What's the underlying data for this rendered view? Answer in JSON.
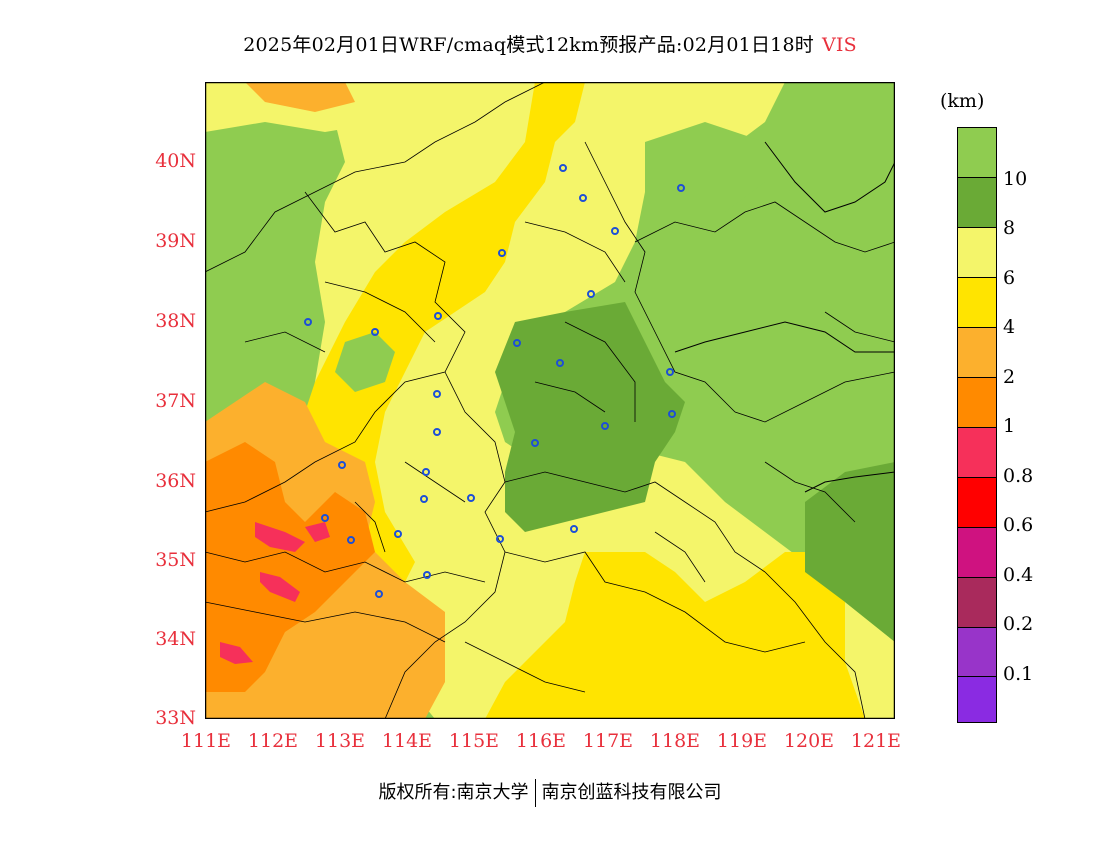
{
  "title": {
    "text": "2025年02月01日WRF/cmaq模式12km预报产品:02月01日18时",
    "variable": "VIS"
  },
  "map": {
    "lat_labels": [
      "40N",
      "39N",
      "38N",
      "37N",
      "36N",
      "35N",
      "34N",
      "33N"
    ],
    "lon_labels": [
      "111E",
      "112E",
      "113E",
      "114E",
      "115E",
      "116E",
      "117E",
      "118E",
      "119E",
      "120E",
      "121E"
    ],
    "lat_range": [
      33,
      41
    ],
    "lon_range": [
      111,
      121.4
    ]
  },
  "legend": {
    "unit": "(km)",
    "labels": [
      "10",
      "8",
      "6",
      "4",
      "2",
      "1",
      "0.8",
      "0.6",
      "0.4",
      "0.2",
      "0.1"
    ],
    "colors": [
      "#8fcc50",
      "#6aaa36",
      "#f4f56a",
      "#ffe400",
      "#fcb02d",
      "#ff8a00",
      "#f6305a",
      "#ff0000",
      "#cf1280",
      "#a92a5c",
      "#9834c9",
      "#8a2be2"
    ]
  },
  "footer": {
    "copyright": "版权所有:南京大学",
    "company": "南京创蓝科技有限公司"
  }
}
